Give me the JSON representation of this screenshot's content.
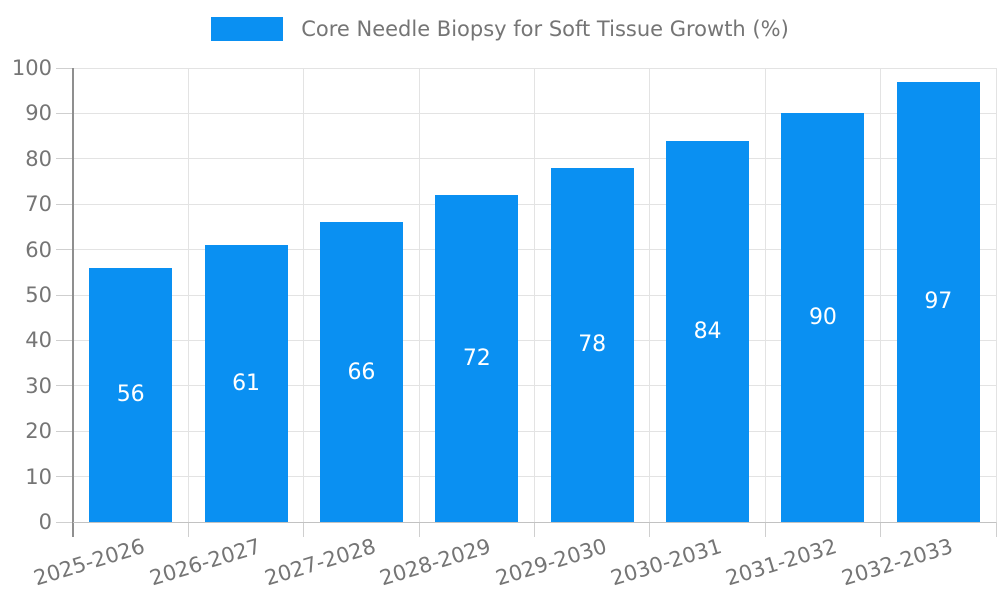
{
  "legend": {
    "label": "Core Needle Biopsy for Soft Tissue Growth (%)"
  },
  "colors": {
    "bar": "#0a90f2",
    "axis_text": "#757575",
    "value_label_text": "#ffffff",
    "gridline": "#e3e3e3",
    "tick": "#cfcfcf",
    "axis_line_y": "#8f8f8f",
    "axis_line_x": "#c2c2c2"
  },
  "chart_data": {
    "type": "bar",
    "title": "",
    "xlabel": "",
    "ylabel": "",
    "categories": [
      "2025-2026",
      "2026-2027",
      "2027-2028",
      "2028-2029",
      "2029-2030",
      "2030-2031",
      "2031-2032",
      "2032-2033"
    ],
    "series": [
      {
        "name": "Core Needle Biopsy for Soft Tissue Growth (%)",
        "values": [
          56,
          61,
          66,
          72,
          78,
          84,
          90,
          97
        ]
      }
    ],
    "value_labels": "inside-center",
    "ylim": [
      0,
      100
    ],
    "y_ticks": [
      0,
      10,
      20,
      30,
      40,
      50,
      60,
      70,
      80,
      90,
      100
    ],
    "grid": "both",
    "legend_position": "top-center"
  }
}
